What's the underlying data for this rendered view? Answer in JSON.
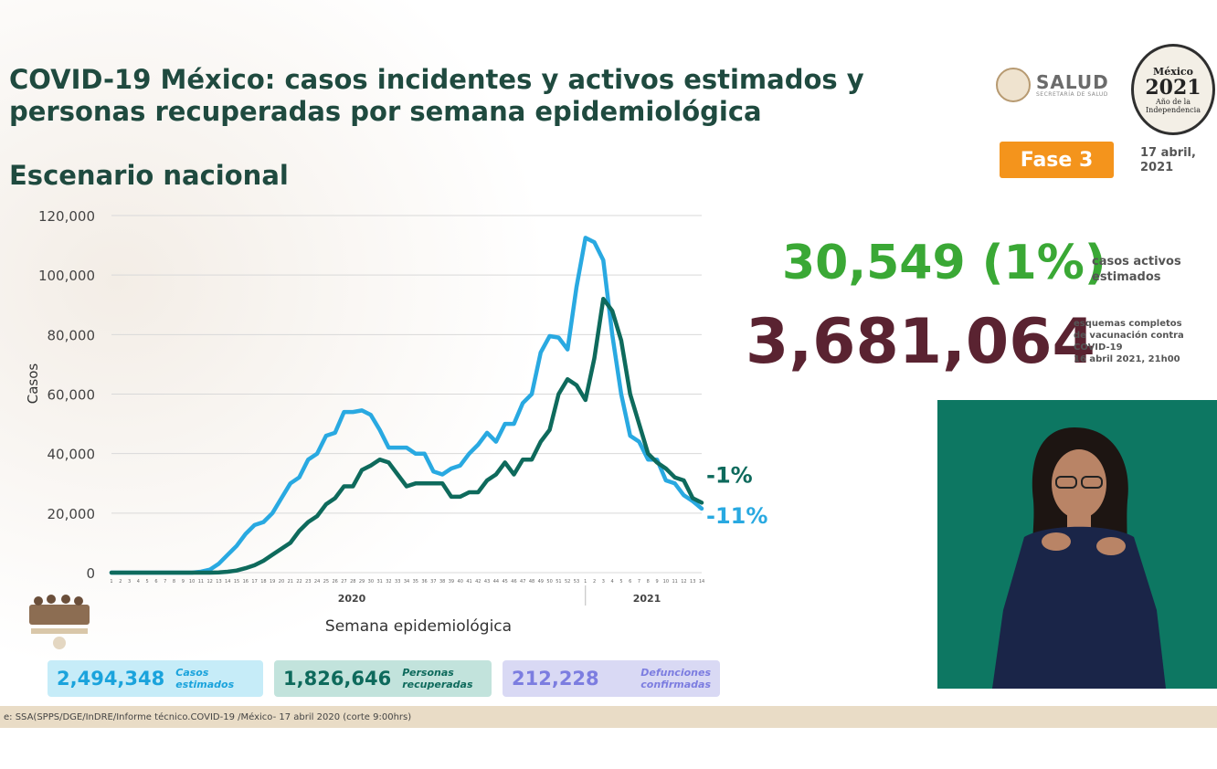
{
  "title": "COVID-19 México: casos incidentes y activos estimados y personas recuperadas por semana epidemiológica",
  "subtitle": "Escenario nacional",
  "logo_salud": "SALUD",
  "logo_salud_sub": "SECRETARÍA DE SALUD",
  "logo_2021_l1": "México",
  "logo_2021_l2": "2021",
  "logo_2021_l3": "Año de la Independencia",
  "fase": "Fase 3",
  "date_line1": "17 abril,",
  "date_line2": "2021",
  "active_cases": "30,549 (1%)",
  "active_cases_label": "casos activos estimados",
  "vaccination": "3,681,064",
  "vaccination_label_1": "esquemas completos",
  "vaccination_label_2": "de vacunación contra",
  "vaccination_label_3": "COVID-19",
  "vaccination_label_4": "16 abril 2021, 21h00",
  "boxes": [
    {
      "value": "2,494,348",
      "label1": "Casos",
      "label2": "estimados"
    },
    {
      "value": "1,826,646",
      "label1": "Personas",
      "label2": "recuperadas"
    },
    {
      "value": "212,228",
      "label1": "Defunciones",
      "label2": "confirmadas"
    }
  ],
  "source": "e: SSA(SPPS/DGE/InDRE/Informe técnico.COVID-19 /México- 17 abril 2020 (corte 9:00hrs)",
  "colors": {
    "incident": "#29a9e1",
    "recovered": "#0e6a5c",
    "active": "#3aa835",
    "vaccine": "#5a2331",
    "fase": "#f4941c"
  },
  "chart_data": {
    "type": "line",
    "ylabel": "Casos",
    "xlabel": "Semana epidemiológica",
    "ylim": [
      0,
      120000
    ],
    "yticks": [
      0,
      20000,
      40000,
      60000,
      80000,
      100000,
      120000
    ],
    "ytick_labels": [
      "0",
      "20,000",
      "40,000",
      "60,000",
      "80,000",
      "100,000",
      "120,000"
    ],
    "year_labels": [
      "2020",
      "2021"
    ],
    "x": [
      "1",
      "2",
      "3",
      "4",
      "5",
      "6",
      "7",
      "8",
      "9",
      "10",
      "11",
      "12",
      "13",
      "14",
      "15",
      "16",
      "17",
      "18",
      "19",
      "20",
      "21",
      "22",
      "23",
      "24",
      "25",
      "26",
      "27",
      "28",
      "29",
      "30",
      "31",
      "32",
      "33",
      "34",
      "35",
      "36",
      "37",
      "38",
      "39",
      "40",
      "41",
      "42",
      "43",
      "44",
      "45",
      "46",
      "47",
      "48",
      "49",
      "50",
      "51",
      "52",
      "53",
      "1",
      "2",
      "3",
      "4",
      "5",
      "6",
      "7",
      "8",
      "9",
      "10",
      "11",
      "12",
      "13",
      "14"
    ],
    "series": [
      {
        "color": "#29a9e1",
        "end_label": "-11%",
        "values": [
          0,
          0,
          0,
          0,
          0,
          0,
          0,
          0,
          0,
          0,
          300,
          1000,
          3000,
          6000,
          9000,
          13000,
          16000,
          17000,
          20000,
          25000,
          30000,
          32000,
          38000,
          40000,
          46000,
          47000,
          54000,
          54000,
          54500,
          53000,
          48000,
          42000,
          42000,
          42000,
          40000,
          40000,
          34000,
          33000,
          35000,
          36000,
          40000,
          43000,
          47000,
          44000,
          50000,
          50000,
          57000,
          60000,
          74000,
          79500,
          79000,
          75000,
          96000,
          112500,
          111000,
          105000,
          80000,
          60000,
          46000,
          44000,
          38000,
          38000,
          31000,
          30000,
          26000,
          24000,
          21500
        ]
      },
      {
        "color": "#0e6a5c",
        "end_label": "-1%",
        "values": [
          0,
          0,
          0,
          0,
          0,
          0,
          0,
          0,
          0,
          0,
          0,
          0,
          100,
          300,
          700,
          1500,
          2500,
          4000,
          6000,
          8000,
          10000,
          14000,
          17000,
          19000,
          23000,
          25000,
          29000,
          29000,
          34500,
          36000,
          38000,
          37000,
          33000,
          29000,
          30000,
          30000,
          30000,
          30000,
          25500,
          25500,
          27000,
          27000,
          31000,
          33000,
          37000,
          33000,
          38000,
          38000,
          44000,
          48000,
          60000,
          65000,
          63000,
          58000,
          72000,
          92000,
          88000,
          78000,
          60000,
          50000,
          40000,
          37000,
          35000,
          32000,
          31000,
          25000,
          23500
        ]
      }
    ]
  }
}
